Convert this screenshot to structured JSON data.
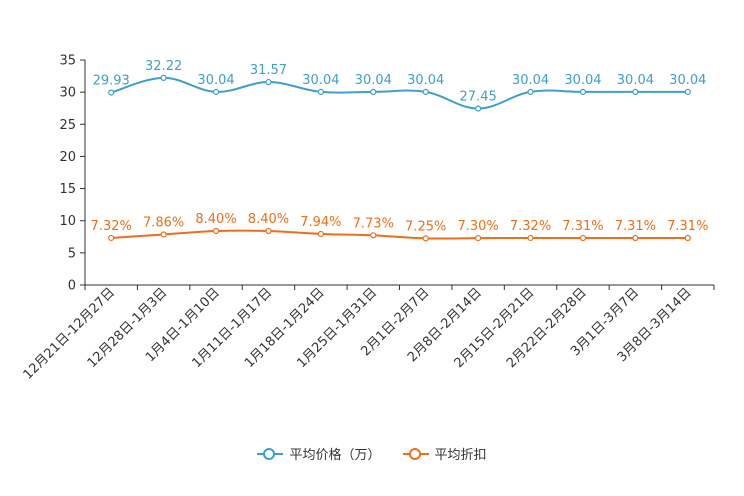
{
  "chart_data": {
    "type": "line",
    "categories": [
      "12月21日-12月27日",
      "12月28日-1月3日",
      "1月4日-1月10日",
      "1月11日-1月17日",
      "1月18日-1月24日",
      "1月25日-1月31日",
      "2月1日-2月7日",
      "2月8日-2月14日",
      "2月15日-2月21日",
      "2月22日-2月28日",
      "3月1日-3月7日",
      "3月8日-3月14日"
    ],
    "y_ticks": [
      "0",
      "5",
      "10",
      "15",
      "20",
      "25",
      "30",
      "35"
    ],
    "ylim": [
      0,
      35
    ],
    "series": [
      {
        "name": "平均价格（万）",
        "color": "#3e9fcf",
        "values": [
          29.93,
          32.22,
          30.04,
          31.57,
          30.04,
          30.04,
          30.04,
          27.45,
          30.04,
          30.04,
          30.04,
          30.04
        ],
        "labels": [
          "29.93",
          "32.22",
          "30.04",
          "31.57",
          "30.04",
          "30.04",
          "30.04",
          "27.45",
          "30.04",
          "30.04",
          "30.04",
          "30.04"
        ]
      },
      {
        "name": "平均折扣",
        "color": "#ef6e1a",
        "values": [
          7.32,
          7.86,
          8.4,
          8.4,
          7.94,
          7.73,
          7.25,
          7.3,
          7.32,
          7.31,
          7.31,
          7.31
        ],
        "labels": [
          "7.32%",
          "7.86%",
          "8.40%",
          "8.40%",
          "7.94%",
          "7.73%",
          "7.25%",
          "7.30%",
          "7.32%",
          "7.31%",
          "7.31%",
          "7.31%"
        ]
      }
    ],
    "legend_position": "bottom-center"
  }
}
